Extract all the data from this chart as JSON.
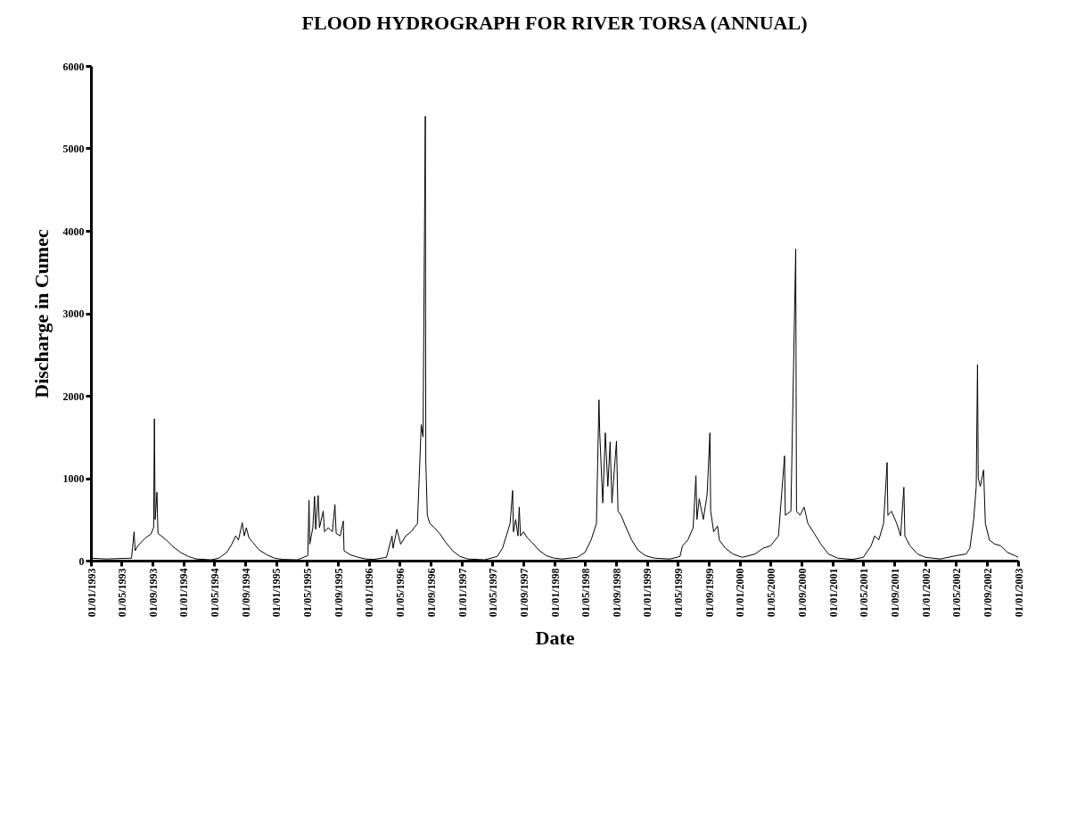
{
  "chart_data": {
    "type": "line",
    "title": "FLOOD HYDROGRAPH FOR RIVER TORSA (ANNUAL)",
    "xlabel": "Date",
    "ylabel": "Discharge in Cumec",
    "x": [
      "1993-01-01",
      "1993-03-01",
      "1993-06-10",
      "1993-06-20",
      "1993-06-24",
      "1993-07-05",
      "1993-07-20",
      "1993-08-05",
      "1993-08-25",
      "1993-09-05",
      "1993-09-08",
      "1993-09-11",
      "1993-09-18",
      "1993-09-22",
      "1993-10-05",
      "1993-10-25",
      "1993-11-20",
      "1993-12-20",
      "1994-01-20",
      "1994-02-20",
      "1994-04-20",
      "1994-05-20",
      "1994-06-20",
      "1994-07-10",
      "1994-07-25",
      "1994-08-05",
      "1994-08-20",
      "1994-08-28",
      "1994-09-05",
      "1994-09-15",
      "1994-10-01",
      "1994-10-25",
      "1994-11-25",
      "1994-12-25",
      "1995-01-25",
      "1995-03-25",
      "1995-05-05",
      "1995-05-10",
      "1995-05-13",
      "1995-05-25",
      "1995-06-01",
      "1995-06-05",
      "1995-06-15",
      "1995-06-20",
      "1995-07-05",
      "1995-07-10",
      "1995-07-25",
      "1995-08-10",
      "1995-08-20",
      "1995-08-25",
      "1995-09-10",
      "1995-09-22",
      "1995-09-25",
      "1995-10-20",
      "1995-11-20",
      "1995-12-20",
      "1996-01-20",
      "1996-03-10",
      "1996-04-01",
      "1996-04-05",
      "1996-04-20",
      "1996-05-05",
      "1996-05-25",
      "1996-06-15",
      "1996-07-10",
      "1996-07-25",
      "1996-08-01",
      "1996-08-10",
      "1996-08-12",
      "1996-08-18",
      "1996-08-28",
      "1996-09-15",
      "1996-10-05",
      "1996-10-30",
      "1996-11-25",
      "1996-12-25",
      "1997-01-25",
      "1997-04-01",
      "1997-05-20",
      "1997-06-10",
      "1997-06-25",
      "1997-07-10",
      "1997-07-20",
      "1997-07-23",
      "1997-08-01",
      "1997-08-10",
      "1997-08-15",
      "1997-08-20",
      "1997-09-01",
      "1997-09-15",
      "1997-10-05",
      "1997-10-30",
      "1997-11-30",
      "1997-12-30",
      "1998-01-30",
      "1998-04-01",
      "1998-05-01",
      "1998-05-25",
      "1998-06-15",
      "1998-06-25",
      "1998-06-28",
      "1998-07-10",
      "1998-07-20",
      "1998-07-30",
      "1998-08-08",
      "1998-08-15",
      "1998-09-02",
      "1998-09-08",
      "1998-09-20",
      "1998-10-10",
      "1998-11-01",
      "1998-11-25",
      "1998-12-25",
      "1999-01-30",
      "1999-04-01",
      "1999-05-10",
      "1999-05-20",
      "1999-06-10",
      "1999-07-01",
      "1999-07-12",
      "1999-07-16",
      "1999-07-25",
      "1999-08-10",
      "1999-08-25",
      "1999-09-05",
      "1999-09-08",
      "1999-09-20",
      "1999-10-05",
      "1999-10-12",
      "1999-11-05",
      "1999-12-05",
      "2000-01-10",
      "2000-03-01",
      "2000-04-01",
      "2000-05-01",
      "2000-06-01",
      "2000-06-25",
      "2000-06-28",
      "2000-07-20",
      "2000-08-08",
      "2000-08-11",
      "2000-08-25",
      "2000-09-10",
      "2000-09-25",
      "2000-10-20",
      "2000-11-15",
      "2000-12-15",
      "2001-01-20",
      "2001-03-20",
      "2001-05-01",
      "2001-06-01",
      "2001-06-15",
      "2001-07-01",
      "2001-07-20",
      "2001-08-03",
      "2001-08-06",
      "2001-08-20",
      "2001-09-10",
      "2001-09-25",
      "2001-10-08",
      "2001-10-12",
      "2001-11-01",
      "2001-12-01",
      "2002-01-01",
      "2002-03-01",
      "2002-05-01",
      "2002-06-10",
      "2002-06-25",
      "2002-07-10",
      "2002-07-20",
      "2002-07-25",
      "2002-07-28",
      "2002-08-05",
      "2002-08-18",
      "2002-08-25",
      "2002-09-10",
      "2002-10-01",
      "2002-10-25",
      "2002-11-20",
      "2002-12-20",
      "2003-01-01"
    ],
    "series": [
      {
        "color": "#000000",
        "values": [
          30,
          20,
          30,
          350,
          120,
          180,
          230,
          280,
          320,
          400,
          1720,
          500,
          830,
          330,
          300,
          250,
          170,
          100,
          50,
          20,
          10,
          30,
          100,
          200,
          300,
          250,
          460,
          300,
          400,
          280,
          220,
          130,
          70,
          30,
          15,
          10,
          60,
          730,
          200,
          400,
          780,
          380,
          790,
          400,
          600,
          350,
          400,
          350,
          680,
          330,
          300,
          480,
          120,
          70,
          40,
          20,
          15,
          40,
          300,
          150,
          380,
          200,
          300,
          350,
          450,
          1650,
          1500,
          5390,
          1200,
          550,
          450,
          400,
          330,
          220,
          120,
          50,
          20,
          10,
          50,
          150,
          300,
          450,
          850,
          350,
          500,
          300,
          650,
          300,
          350,
          280,
          220,
          130,
          60,
          30,
          20,
          40,
          100,
          250,
          450,
          1950,
          1550,
          700,
          1550,
          900,
          1440,
          700,
          1450,
          600,
          550,
          400,
          250,
          130,
          60,
          30,
          20,
          50,
          180,
          250,
          400,
          1030,
          500,
          750,
          500,
          800,
          1550,
          600,
          350,
          420,
          250,
          150,
          80,
          40,
          80,
          150,
          180,
          300,
          1270,
          550,
          600,
          3780,
          600,
          550,
          650,
          450,
          330,
          200,
          80,
          30,
          15,
          40,
          180,
          300,
          250,
          450,
          1190,
          550,
          600,
          450,
          300,
          890,
          300,
          180,
          80,
          40,
          20,
          60,
          80,
          150,
          500,
          900,
          2375,
          1000,
          900,
          1100,
          450,
          250,
          200,
          180,
          100,
          60,
          40
        ]
      }
    ],
    "xlim": [
      "1993-01-01",
      "2003-01-01"
    ],
    "xticks": [
      {
        "value": "1993-01-01",
        "label": "01/01/1993"
      },
      {
        "value": "1993-05-01",
        "label": "01/05/1993"
      },
      {
        "value": "1993-09-01",
        "label": "01/09/1993"
      },
      {
        "value": "1994-01-01",
        "label": "01/01/1994"
      },
      {
        "value": "1994-05-01",
        "label": "01/05/1994"
      },
      {
        "value": "1994-09-01",
        "label": "01/09/1994"
      },
      {
        "value": "1995-01-01",
        "label": "01/01/1995"
      },
      {
        "value": "1995-05-01",
        "label": "01/05/1995"
      },
      {
        "value": "1995-09-01",
        "label": "01/09/1995"
      },
      {
        "value": "1996-01-01",
        "label": "01/01/1996"
      },
      {
        "value": "1996-05-01",
        "label": "01/05/1996"
      },
      {
        "value": "1996-09-01",
        "label": "01/09/1996"
      },
      {
        "value": "1997-01-01",
        "label": "01/01/1997"
      },
      {
        "value": "1997-05-01",
        "label": "01/05/1997"
      },
      {
        "value": "1997-09-01",
        "label": "01/09/1997"
      },
      {
        "value": "1998-01-01",
        "label": "01/01/1998"
      },
      {
        "value": "1998-05-01",
        "label": "01/05/1998"
      },
      {
        "value": "1998-09-01",
        "label": "01/09/1998"
      },
      {
        "value": "1999-01-01",
        "label": "01/01/1999"
      },
      {
        "value": "1999-05-01",
        "label": "01/05/1999"
      },
      {
        "value": "1999-09-01",
        "label": "01/09/1999"
      },
      {
        "value": "2000-01-01",
        "label": "01/01/2000"
      },
      {
        "value": "2000-05-01",
        "label": "01/05/2000"
      },
      {
        "value": "2000-09-01",
        "label": "01/09/2000"
      },
      {
        "value": "2001-01-01",
        "label": "01/01/2001"
      },
      {
        "value": "2001-05-01",
        "label": "01/05/2001"
      },
      {
        "value": "2001-09-01",
        "label": "01/09/2001"
      },
      {
        "value": "2002-01-01",
        "label": "01/01/2002"
      },
      {
        "value": "2002-05-01",
        "label": "01/05/2002"
      },
      {
        "value": "2002-09-01",
        "label": "01/09/2002"
      },
      {
        "value": "2003-01-01",
        "label": "01/01/2003"
      }
    ],
    "ylim": [
      0,
      6000
    ],
    "yticks": [
      0,
      1000,
      2000,
      3000,
      4000,
      5000,
      6000
    ],
    "grid": false,
    "marker": "none",
    "line_style": "solid"
  }
}
